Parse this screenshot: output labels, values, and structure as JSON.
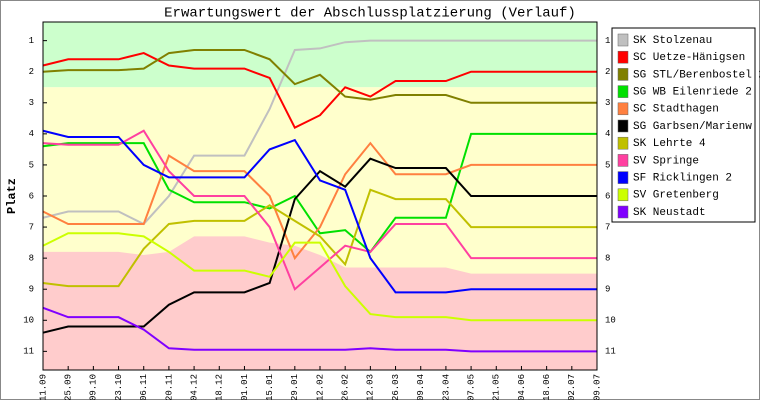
{
  "chart_data": {
    "type": "line",
    "title": "Erwartungswert der Abschlussplatzierung (Verlauf)",
    "y_label": "Platz",
    "categories": [
      "11.09",
      "25.09",
      "09.10",
      "23.10",
      "06.11",
      "20.11",
      "04.12",
      "18.12",
      "01.01",
      "15.01",
      "29.01",
      "12.02",
      "26.02",
      "12.03",
      "26.03",
      "09.04",
      "23.04",
      "07.05",
      "21.05",
      "04.06",
      "18.06",
      "02.07",
      "09.07"
    ],
    "ylim": [
      11.6,
      0.4
    ],
    "yticks": [
      1,
      2,
      3,
      4,
      5,
      6,
      7,
      8,
      9,
      10,
      11
    ],
    "zones": [
      {
        "color": "#ccffcc",
        "from": 0.4,
        "to": 2.5
      },
      {
        "color": "#ffffcc",
        "from": 2.5,
        "to": 11.6
      },
      {
        "color": "#ffcccc",
        "top": [
          7.8,
          7.8,
          7.8,
          7.8,
          7.9,
          7.8,
          7.3,
          7.3,
          7.3,
          7.5,
          7.6,
          7.9,
          8.3,
          8.3,
          8.3,
          8.3,
          8.3,
          8.5,
          8.5,
          8.5,
          8.5,
          8.5,
          8.5
        ],
        "to": 11.6
      }
    ],
    "series": [
      {
        "name": "SK Stolzenau",
        "color": "#c0c0c0",
        "values": [
          6.7,
          6.5,
          6.5,
          6.5,
          6.9,
          6.0,
          4.7,
          4.7,
          4.7,
          3.2,
          1.3,
          1.25,
          1.05,
          1.0,
          1.0,
          1.0,
          1.0,
          1.0,
          1.0,
          1.0,
          1.0,
          1.0,
          1.0
        ]
      },
      {
        "name": "SC Uetze-Hänigsen",
        "color": "#ff0000",
        "values": [
          1.8,
          1.6,
          1.6,
          1.6,
          1.4,
          1.8,
          1.9,
          1.9,
          1.9,
          2.2,
          3.8,
          3.4,
          2.5,
          2.8,
          2.3,
          2.3,
          2.3,
          2.0,
          2.0,
          2.0,
          2.0,
          2.0,
          2.0
        ]
      },
      {
        "name": "SG STL/Berenbostel 2",
        "color": "#808000",
        "values": [
          2.0,
          1.95,
          1.95,
          1.95,
          1.9,
          1.4,
          1.3,
          1.3,
          1.3,
          1.6,
          2.4,
          2.1,
          2.8,
          2.9,
          2.75,
          2.75,
          2.75,
          3.0,
          3.0,
          3.0,
          3.0,
          3.0,
          3.0
        ]
      },
      {
        "name": "SG WB Eilenriede 2",
        "color": "#00e000",
        "values": [
          4.4,
          4.3,
          4.3,
          4.3,
          4.3,
          5.8,
          6.2,
          6.2,
          6.2,
          6.4,
          6.0,
          7.2,
          7.1,
          7.8,
          6.7,
          6.7,
          6.7,
          4.0,
          4.0,
          4.0,
          4.0,
          4.0,
          4.0
        ]
      },
      {
        "name": "SC Stadthagen",
        "color": "#ff8040",
        "values": [
          6.5,
          6.9,
          6.9,
          6.9,
          6.9,
          4.7,
          5.2,
          5.2,
          5.2,
          6.0,
          8.0,
          7.0,
          5.3,
          4.3,
          5.3,
          5.3,
          5.3,
          5.0,
          5.0,
          5.0,
          5.0,
          5.0,
          5.0
        ]
      },
      {
        "name": "SG Garbsen/Marienw",
        "color": "#000000",
        "values": [
          10.4,
          10.2,
          10.2,
          10.2,
          10.2,
          9.5,
          9.1,
          9.1,
          9.1,
          8.8,
          6.1,
          5.2,
          5.7,
          4.8,
          5.1,
          5.1,
          5.1,
          6.0,
          6.0,
          6.0,
          6.0,
          6.0,
          6.0
        ]
      },
      {
        "name": "SK Lehrte 4",
        "color": "#c0c000",
        "values": [
          8.8,
          8.9,
          8.9,
          8.9,
          7.7,
          6.9,
          6.8,
          6.8,
          6.8,
          6.3,
          6.8,
          7.3,
          8.2,
          5.8,
          6.1,
          6.1,
          6.1,
          7.0,
          7.0,
          7.0,
          7.0,
          7.0,
          7.0
        ]
      },
      {
        "name": "SV Springe",
        "color": "#ff40a0",
        "values": [
          4.3,
          4.35,
          4.35,
          4.35,
          3.9,
          5.2,
          6.0,
          6.0,
          6.0,
          7.0,
          9.0,
          8.3,
          7.6,
          7.8,
          6.9,
          6.9,
          6.9,
          8.0,
          8.0,
          8.0,
          8.0,
          8.0,
          8.0
        ]
      },
      {
        "name": "SF Ricklingen 2",
        "color": "#0000ff",
        "values": [
          3.9,
          4.1,
          4.1,
          4.1,
          5.0,
          5.4,
          5.4,
          5.4,
          5.4,
          4.5,
          4.2,
          5.5,
          5.8,
          8.0,
          9.1,
          9.1,
          9.1,
          9.0,
          9.0,
          9.0,
          9.0,
          9.0,
          9.0
        ]
      },
      {
        "name": "SV Gretenberg",
        "color": "#ccff00",
        "values": [
          7.6,
          7.2,
          7.2,
          7.2,
          7.3,
          7.8,
          8.4,
          8.4,
          8.4,
          8.6,
          7.5,
          7.5,
          8.9,
          9.8,
          9.9,
          9.9,
          9.9,
          10.0,
          10.0,
          10.0,
          10.0,
          10.0,
          10.0
        ]
      },
      {
        "name": "SK Neustadt",
        "color": "#8000ff",
        "values": [
          9.6,
          9.9,
          9.9,
          9.9,
          10.3,
          10.9,
          10.95,
          10.95,
          10.95,
          10.95,
          10.95,
          10.95,
          10.95,
          10.9,
          10.95,
          10.95,
          10.95,
          11.0,
          11.0,
          11.0,
          11.0,
          11.0,
          11.0
        ]
      }
    ]
  }
}
